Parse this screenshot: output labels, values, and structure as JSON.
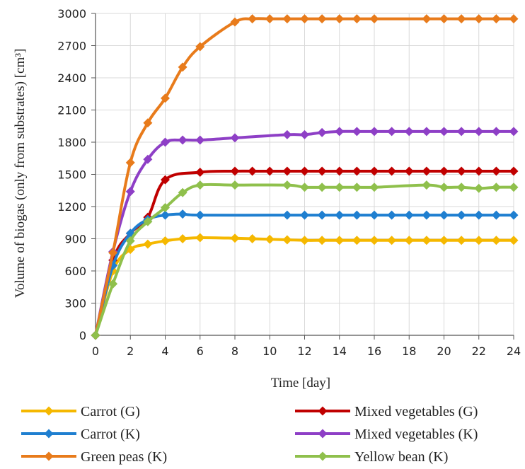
{
  "chart_data": {
    "type": "line",
    "title": "",
    "xlabel": "Time [day]",
    "ylabel": "Volume of biogas (only from substrates) [cm³]",
    "xlim": [
      0,
      24
    ],
    "ylim": [
      0,
      3000
    ],
    "xticks": [
      "0",
      "2",
      "4",
      "6",
      "8",
      "10",
      "12",
      "14",
      "16",
      "18",
      "20",
      "22",
      "24"
    ],
    "yticks": [
      "0",
      "300",
      "600",
      "900",
      "1200",
      "1500",
      "1800",
      "2100",
      "2400",
      "2700",
      "3000"
    ],
    "grid": true,
    "legend_position": "bottom",
    "series": [
      {
        "name": "Carrot (G)",
        "color": "#f5b800",
        "x": [
          0,
          1,
          2,
          3,
          4,
          5,
          6,
          8,
          9,
          10,
          11,
          12,
          13,
          14,
          15,
          16,
          17,
          18,
          19,
          20,
          21,
          22,
          23,
          24
        ],
        "y": [
          0,
          600,
          800,
          850,
          880,
          900,
          910,
          905,
          900,
          895,
          890,
          885,
          885,
          885,
          885,
          885,
          885,
          885,
          885,
          885,
          885,
          885,
          885,
          885
        ]
      },
      {
        "name": "Mixed vegetables (G)",
        "color": "#c00000",
        "x": [
          0,
          1,
          2,
          3,
          4,
          6,
          8,
          9,
          10,
          11,
          12,
          13,
          14,
          15,
          16,
          17,
          18,
          19,
          20,
          21,
          22,
          23,
          24
        ],
        "y": [
          0,
          700,
          950,
          1100,
          1450,
          1520,
          1530,
          1530,
          1530,
          1530,
          1530,
          1530,
          1530,
          1530,
          1530,
          1530,
          1530,
          1530,
          1530,
          1530,
          1530,
          1530,
          1530
        ]
      },
      {
        "name": "Carrot (K)",
        "color": "#1f7fd0",
        "x": [
          0,
          1,
          2,
          3,
          4,
          5,
          6,
          11,
          12,
          13,
          14,
          15,
          16,
          17,
          18,
          19,
          20,
          21,
          22,
          23,
          24
        ],
        "y": [
          0,
          650,
          950,
          1080,
          1120,
          1130,
          1120,
          1120,
          1120,
          1120,
          1120,
          1120,
          1120,
          1120,
          1120,
          1120,
          1120,
          1120,
          1120,
          1120,
          1120
        ]
      },
      {
        "name": "Mixed vegetables (K)",
        "color": "#8e3fc6",
        "x": [
          0,
          1,
          2,
          3,
          4,
          5,
          6,
          8,
          11,
          12,
          13,
          14,
          15,
          16,
          17,
          18,
          19,
          20,
          21,
          22,
          23,
          24
        ],
        "y": [
          0,
          780,
          1340,
          1640,
          1800,
          1820,
          1820,
          1840,
          1870,
          1870,
          1890,
          1900,
          1900,
          1900,
          1900,
          1900,
          1900,
          1900,
          1900,
          1900,
          1900,
          1900
        ]
      },
      {
        "name": "Green peas (K)",
        "color": "#e87b1b",
        "x": [
          0,
          1,
          2,
          3,
          4,
          5,
          6,
          8,
          9,
          10,
          11,
          12,
          13,
          14,
          15,
          16,
          19,
          20,
          21,
          22,
          23,
          24
        ],
        "y": [
          0,
          770,
          1610,
          1980,
          2210,
          2500,
          2690,
          2920,
          2950,
          2950,
          2950,
          2950,
          2950,
          2950,
          2950,
          2950,
          2950,
          2950,
          2950,
          2950,
          2950,
          2950
        ]
      },
      {
        "name": "Yellow bean (K)",
        "color": "#8fc04c",
        "x": [
          0,
          1,
          2,
          3,
          4,
          5,
          6,
          8,
          11,
          12,
          13,
          14,
          15,
          16,
          19,
          20,
          21,
          22,
          23,
          24
        ],
        "y": [
          0,
          480,
          880,
          1060,
          1190,
          1330,
          1400,
          1400,
          1400,
          1380,
          1380,
          1380,
          1380,
          1380,
          1400,
          1380,
          1380,
          1370,
          1380,
          1380
        ]
      }
    ],
    "legend": [
      {
        "label": "Carrot (G)",
        "series": 0
      },
      {
        "label": "Mixed vegetables (G)",
        "series": 1
      },
      {
        "label": "Carrot (K)",
        "series": 2
      },
      {
        "label": "Mixed vegetables (K)",
        "series": 3
      },
      {
        "label": "Green peas (K)",
        "series": 4
      },
      {
        "label": "Yellow bean (K)",
        "series": 5
      }
    ]
  }
}
